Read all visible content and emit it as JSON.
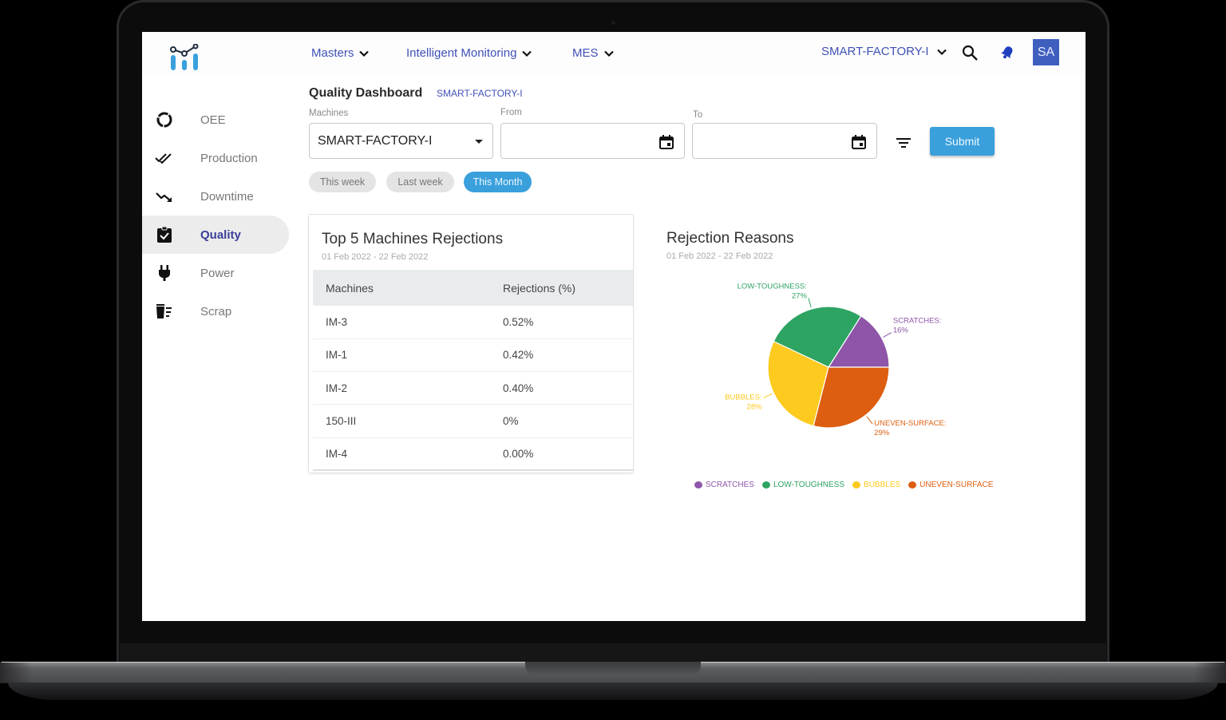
{
  "topbar": {
    "nav": [
      {
        "label": "Masters"
      },
      {
        "label": "Intelligent Monitoring"
      },
      {
        "label": "MES"
      }
    ],
    "factory_selector": "SMART-FACTORY-I",
    "search_icon": "search-icon",
    "notification_icon": "bell-icon",
    "avatar_initials": "SA",
    "brand_color": "#3f51b5",
    "avatar_color": "#3f5fbf"
  },
  "sidebar": {
    "items": [
      {
        "label": "OEE",
        "icon": "donut-icon",
        "active": false
      },
      {
        "label": "Production",
        "icon": "double-check-icon",
        "active": false
      },
      {
        "label": "Downtime",
        "icon": "trending-down-icon",
        "active": false
      },
      {
        "label": "Quality",
        "icon": "clipboard-check-icon",
        "active": true
      },
      {
        "label": "Power",
        "icon": "plug-icon",
        "active": false
      },
      {
        "label": "Scrap",
        "icon": "trash-list-icon",
        "active": false
      }
    ]
  },
  "page": {
    "title": "Quality Dashboard",
    "subtitle": "SMART-FACTORY-I"
  },
  "filters": {
    "machines_label": "Machines",
    "machines_value": "SMART-FACTORY-I",
    "from_label": "From",
    "from_value": "",
    "to_label": "To",
    "to_value": "",
    "submit_label": "Submit",
    "chips": [
      {
        "label": "This week",
        "active": false
      },
      {
        "label": "Last week",
        "active": false
      },
      {
        "label": "This Month",
        "active": true
      }
    ],
    "accent_color": "#3aa0dc"
  },
  "rejections_table": {
    "title": "Top 5 Machines Rejections",
    "date_range": "01 Feb 2022 - 22 Feb 2022",
    "columns": [
      "Machines",
      "Rejections (%)"
    ],
    "rows": [
      {
        "machine": "IM-3",
        "rejections": "0.52%"
      },
      {
        "machine": "IM-1",
        "rejections": "0.42%"
      },
      {
        "machine": "IM-2",
        "rejections": "0.40%"
      },
      {
        "machine": "150-III",
        "rejections": "0%"
      },
      {
        "machine": "IM-4",
        "rejections": "0.00%"
      }
    ]
  },
  "rejection_reasons": {
    "title": "Rejection Reasons",
    "date_range": "01 Feb 2022 - 22 Feb 2022"
  },
  "chart_data": {
    "type": "pie",
    "title": "Rejection Reasons",
    "subtitle": "01 Feb 2022 - 22 Feb 2022",
    "categories": [
      "SCRATCHES",
      "LOW-TOUGHNESS",
      "BUBBLES",
      "UNEVEN-SURFACE"
    ],
    "values": [
      16,
      27,
      28,
      29
    ],
    "colors": [
      "#8e55a9",
      "#2ea463",
      "#fdca1f",
      "#dd5e10"
    ],
    "data_labels": [
      "SCRATCHES:\n16%",
      "LOW-TOUGHNESS:\n27%",
      "BUBBLES:\n28%",
      "UNEVEN-SURFACE:\n29%"
    ],
    "legend_position": "bottom",
    "start_angle_deg": 0,
    "direction": "counter-clockwise"
  }
}
